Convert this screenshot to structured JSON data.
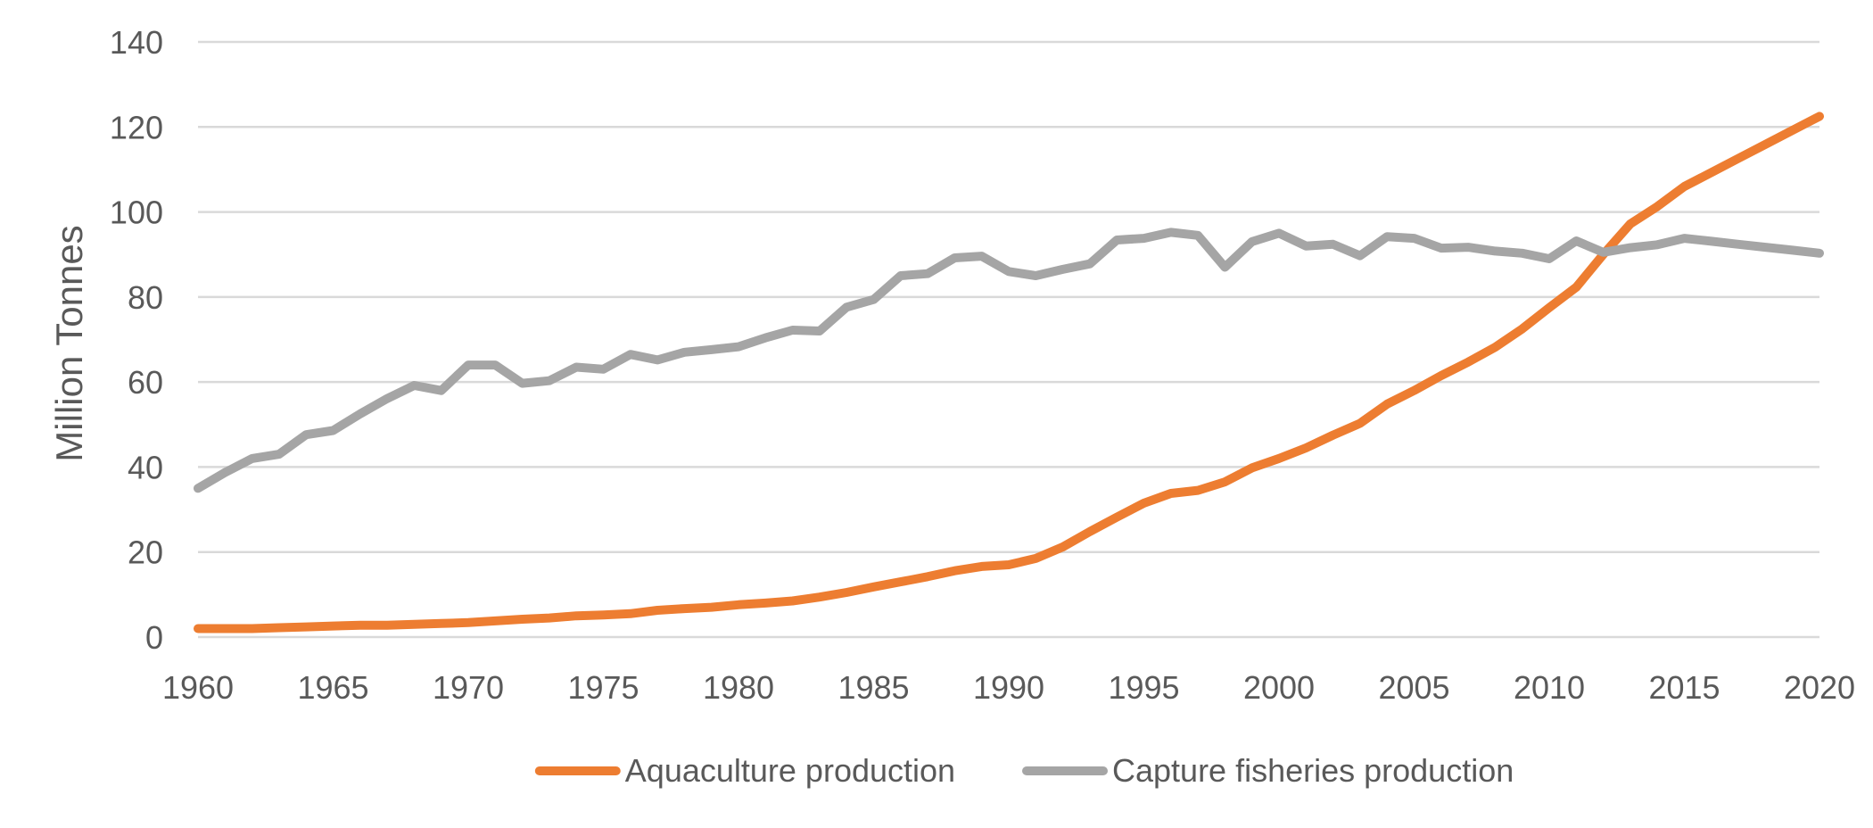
{
  "chart_data": {
    "type": "line",
    "title": "",
    "xlabel": "",
    "ylabel": "Million Tonnes",
    "xlim": [
      1960,
      2020
    ],
    "ylim": [
      0,
      140
    ],
    "y_ticks": [
      "0",
      "20",
      "40",
      "60",
      "80",
      "100",
      "120",
      "140"
    ],
    "x_ticks": [
      "1960",
      "1965",
      "1970",
      "1975",
      "1980",
      "1985",
      "1990",
      "1995",
      "2000",
      "2005",
      "2010",
      "2015",
      "2020"
    ],
    "grid": true,
    "legend_position": "bottom",
    "series": [
      {
        "name": "Aquaculture production",
        "color": "#ED7D31",
        "points": [
          [
            1960,
            2.0
          ],
          [
            1961,
            2.0
          ],
          [
            1962,
            2.0
          ],
          [
            1963,
            2.2
          ],
          [
            1964,
            2.4
          ],
          [
            1965,
            2.6
          ],
          [
            1966,
            2.8
          ],
          [
            1967,
            2.8
          ],
          [
            1968,
            3.0
          ],
          [
            1969,
            3.2
          ],
          [
            1970,
            3.4
          ],
          [
            1971,
            3.8
          ],
          [
            1972,
            4.2
          ],
          [
            1973,
            4.5
          ],
          [
            1974,
            5.0
          ],
          [
            1975,
            5.2
          ],
          [
            1976,
            5.5
          ],
          [
            1977,
            6.3
          ],
          [
            1978,
            6.7
          ],
          [
            1979,
            7.0
          ],
          [
            1980,
            7.6
          ],
          [
            1981,
            8.0
          ],
          [
            1982,
            8.5
          ],
          [
            1983,
            9.4
          ],
          [
            1984,
            10.5
          ],
          [
            1985,
            11.8
          ],
          [
            1986,
            13.0
          ],
          [
            1987,
            14.2
          ],
          [
            1988,
            15.6
          ],
          [
            1989,
            16.6
          ],
          [
            1990,
            17.0
          ],
          [
            1991,
            18.5
          ],
          [
            1992,
            21.2
          ],
          [
            1993,
            24.8
          ],
          [
            1994,
            28.2
          ],
          [
            1995,
            31.5
          ],
          [
            1996,
            33.8
          ],
          [
            1997,
            34.5
          ],
          [
            1998,
            36.5
          ],
          [
            1999,
            39.8
          ],
          [
            2000,
            42.0
          ],
          [
            2001,
            44.5
          ],
          [
            2002,
            47.5
          ],
          [
            2003,
            50.3
          ],
          [
            2004,
            54.8
          ],
          [
            2005,
            58.0
          ],
          [
            2006,
            61.5
          ],
          [
            2007,
            64.7
          ],
          [
            2008,
            68.2
          ],
          [
            2009,
            72.5
          ],
          [
            2010,
            77.5
          ],
          [
            2011,
            82.3
          ],
          [
            2012,
            90.0
          ],
          [
            2013,
            97.2
          ],
          [
            2014,
            101.3
          ],
          [
            2015,
            106.0
          ],
          [
            2016,
            109.3
          ],
          [
            2017,
            112.6
          ],
          [
            2018,
            115.9
          ],
          [
            2019,
            119.2
          ],
          [
            2020,
            122.5
          ]
        ]
      },
      {
        "name": "Capture fisheries production",
        "color": "#A5A5A5",
        "points": [
          [
            1960,
            35.0
          ],
          [
            1961,
            38.7
          ],
          [
            1962,
            42.0
          ],
          [
            1963,
            43.0
          ],
          [
            1964,
            47.6
          ],
          [
            1965,
            48.6
          ],
          [
            1966,
            52.5
          ],
          [
            1967,
            56.1
          ],
          [
            1968,
            59.2
          ],
          [
            1969,
            58.0
          ],
          [
            1970,
            64.0
          ],
          [
            1971,
            64.0
          ],
          [
            1972,
            59.7
          ],
          [
            1973,
            60.3
          ],
          [
            1974,
            63.5
          ],
          [
            1975,
            63.0
          ],
          [
            1976,
            66.5
          ],
          [
            1977,
            65.2
          ],
          [
            1978,
            67.0
          ],
          [
            1979,
            67.6
          ],
          [
            1980,
            68.3
          ],
          [
            1981,
            70.4
          ],
          [
            1982,
            72.2
          ],
          [
            1983,
            72.0
          ],
          [
            1984,
            77.6
          ],
          [
            1985,
            79.4
          ],
          [
            1986,
            85.0
          ],
          [
            1987,
            85.5
          ],
          [
            1988,
            89.2
          ],
          [
            1989,
            89.6
          ],
          [
            1990,
            86.0
          ],
          [
            1991,
            85.0
          ],
          [
            1992,
            86.5
          ],
          [
            1993,
            87.8
          ],
          [
            1994,
            93.4
          ],
          [
            1995,
            93.8
          ],
          [
            1996,
            95.2
          ],
          [
            1997,
            94.5
          ],
          [
            1998,
            87.0
          ],
          [
            1999,
            93.0
          ],
          [
            2000,
            95.0
          ],
          [
            2001,
            92.0
          ],
          [
            2002,
            92.4
          ],
          [
            2003,
            89.7
          ],
          [
            2004,
            94.2
          ],
          [
            2005,
            93.8
          ],
          [
            2006,
            91.5
          ],
          [
            2007,
            91.7
          ],
          [
            2008,
            90.8
          ],
          [
            2009,
            90.3
          ],
          [
            2010,
            89.0
          ],
          [
            2011,
            93.2
          ],
          [
            2012,
            90.5
          ],
          [
            2013,
            91.6
          ],
          [
            2014,
            92.3
          ],
          [
            2015,
            93.8
          ],
          [
            2016,
            93.1
          ],
          [
            2017,
            92.4
          ],
          [
            2018,
            91.7
          ],
          [
            2019,
            91.0
          ],
          [
            2020,
            90.3
          ]
        ]
      }
    ]
  }
}
